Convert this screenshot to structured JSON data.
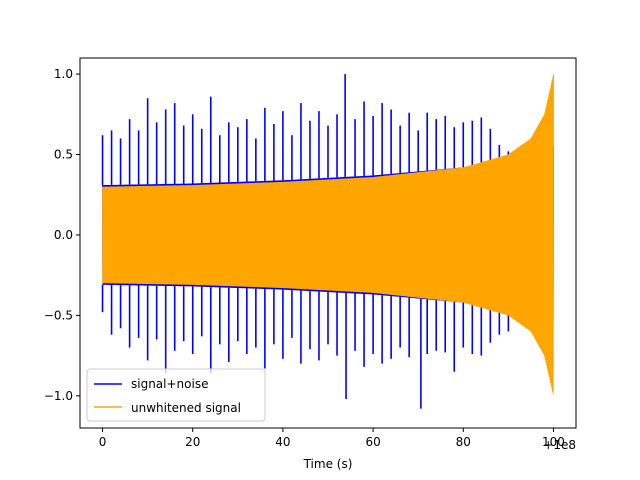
{
  "chart_data": {
    "type": "line",
    "title": "",
    "xlabel": "Time (s)",
    "ylabel": "",
    "x_offset_label": "+1e8",
    "xlim": [
      -5,
      105
    ],
    "ylim": [
      -1.2,
      1.1
    ],
    "xticks": [
      0,
      20,
      40,
      60,
      80,
      100
    ],
    "xtick_labels": [
      "0",
      "20",
      "40",
      "60",
      "80",
      "100"
    ],
    "yticks": [
      -1.0,
      -0.5,
      0.0,
      0.5,
      1.0
    ],
    "ytick_labels": [
      "−1.0",
      "−0.5",
      "0.0",
      "0.5",
      "1.0"
    ],
    "grid": false,
    "legend_position": "lower-left",
    "series": [
      {
        "name": "signal+noise",
        "color": "#0000ff",
        "x_range": [
          0,
          100
        ],
        "band_envelope_x": [
          0,
          20,
          40,
          60,
          80,
          90,
          95,
          100
        ],
        "band_envelope_y": [
          0.31,
          0.32,
          0.34,
          0.37,
          0.42,
          0.46,
          0.5,
          0.55
        ],
        "upper_spike_x": [
          0,
          2,
          4,
          6,
          8,
          10,
          12,
          14,
          16,
          18,
          20,
          22,
          24,
          26,
          28,
          30,
          32,
          34,
          36,
          38,
          40,
          42,
          44,
          46,
          48,
          50,
          52,
          53.8,
          56,
          58,
          60,
          62,
          64,
          66,
          68,
          70,
          72,
          74,
          76,
          78,
          80,
          82,
          84,
          86,
          88,
          90
        ],
        "upper_spike_y": [
          0.62,
          0.65,
          0.6,
          0.72,
          0.65,
          0.85,
          0.7,
          0.78,
          0.82,
          0.68,
          0.75,
          0.66,
          0.86,
          0.62,
          0.7,
          0.67,
          0.72,
          0.6,
          0.79,
          0.69,
          0.77,
          0.62,
          0.82,
          0.71,
          0.77,
          0.68,
          0.75,
          1.0,
          0.72,
          0.83,
          0.74,
          0.82,
          0.78,
          0.68,
          0.76,
          0.65,
          0.76,
          0.72,
          0.74,
          0.67,
          0.7,
          0.71,
          0.73,
          0.66,
          0.56,
          0.52
        ],
        "lower_spike_x": [
          0,
          2,
          4,
          6,
          8,
          10,
          12,
          14,
          16,
          18,
          20,
          22,
          24,
          26,
          28,
          30,
          32,
          34,
          36,
          38,
          40,
          42,
          44,
          46,
          48,
          50,
          52,
          54,
          56,
          58,
          60,
          62,
          64,
          66,
          68,
          70.6,
          72,
          74,
          76,
          78,
          80,
          82,
          84,
          86,
          88,
          90
        ],
        "lower_spike_y": [
          -0.48,
          -0.62,
          -0.58,
          -0.7,
          -0.64,
          -0.78,
          -0.65,
          -0.86,
          -0.72,
          -0.66,
          -0.74,
          -0.63,
          -0.86,
          -0.68,
          -0.79,
          -0.66,
          -0.74,
          -0.7,
          -0.83,
          -0.68,
          -0.77,
          -0.64,
          -0.8,
          -0.71,
          -0.78,
          -0.68,
          -0.75,
          -1.02,
          -0.72,
          -0.82,
          -0.74,
          -0.8,
          -0.77,
          -0.7,
          -0.76,
          -1.08,
          -0.74,
          -0.72,
          -0.73,
          -0.85,
          -0.7,
          -0.74,
          -0.75,
          -0.67,
          -0.62,
          -0.6
        ]
      },
      {
        "name": "unwhitened signal",
        "color": "#ffa500",
        "x_range": [
          0,
          100
        ],
        "envelope_x": [
          0,
          20,
          40,
          60,
          80,
          90,
          95,
          98,
          100
        ],
        "envelope_y": [
          0.3,
          0.31,
          0.33,
          0.36,
          0.42,
          0.5,
          0.6,
          0.75,
          1.0
        ]
      }
    ]
  }
}
